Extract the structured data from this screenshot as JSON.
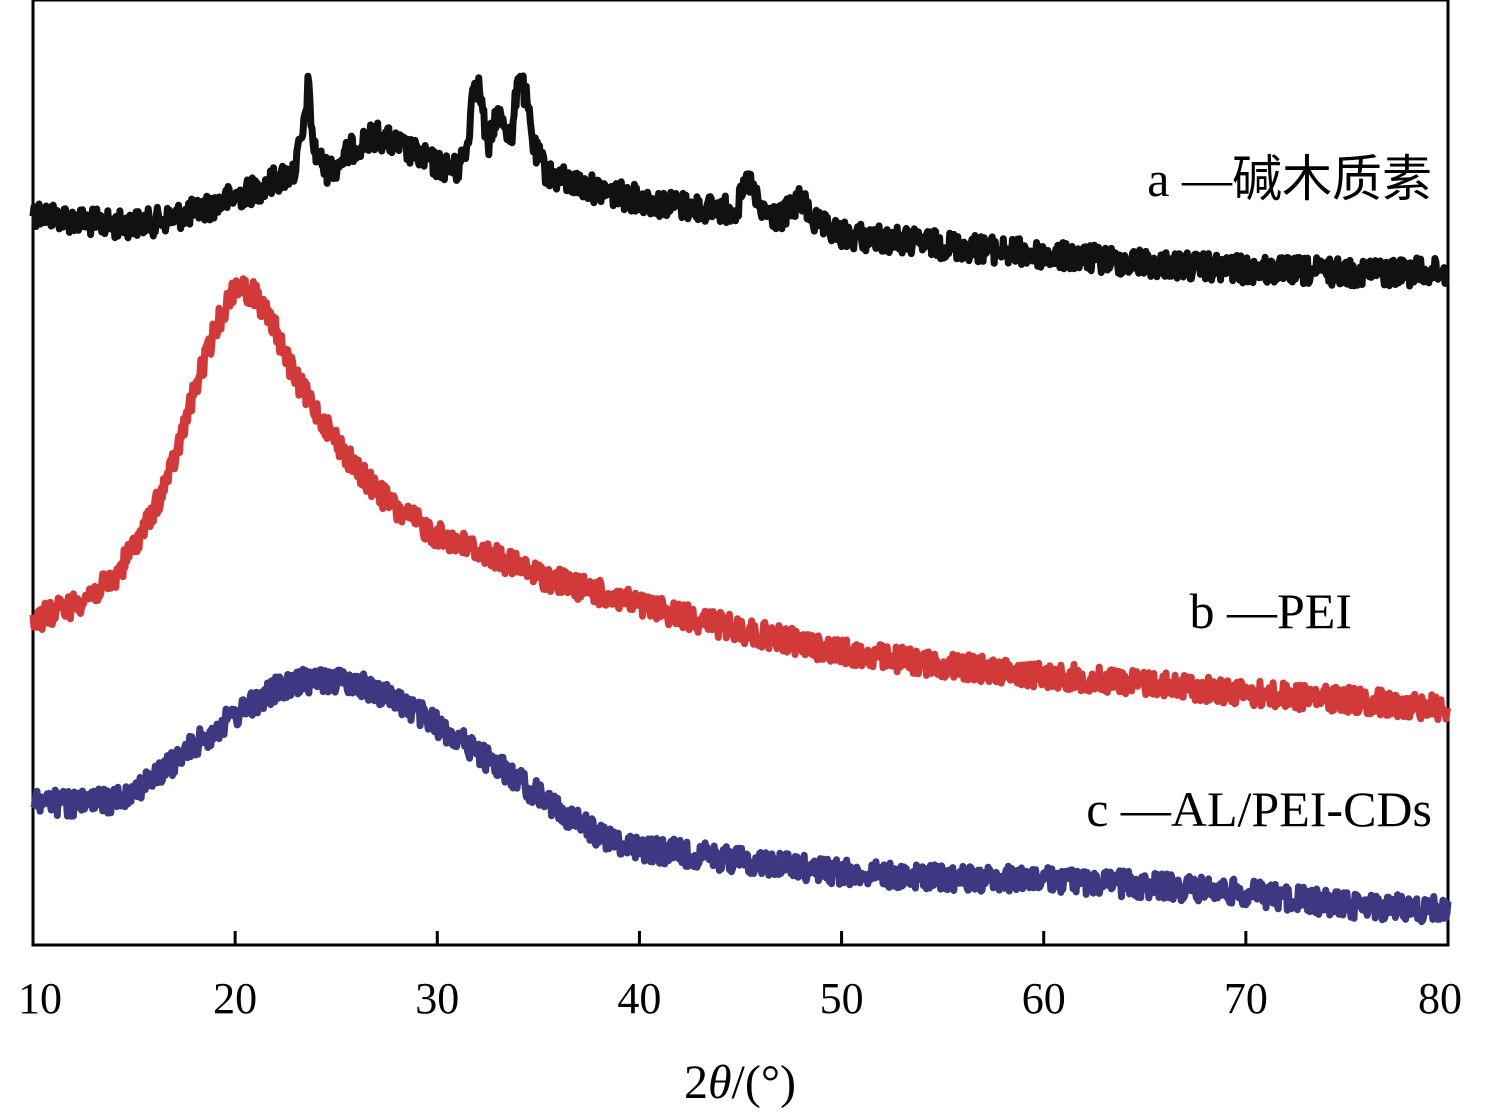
{
  "chart_data": {
    "type": "line",
    "title": "",
    "xlabel_prefix": "2",
    "xlabel_theta": "θ",
    "xlabel_suffix": "/(°)",
    "ylabel": "",
    "xlim": [
      10,
      80
    ],
    "xticks": [
      10,
      20,
      30,
      40,
      50,
      60,
      70,
      80
    ],
    "y_axis_ticks_shown": false,
    "grid": false,
    "legend": "inline labels at right of each curve",
    "series": [
      {
        "label": "a —碱木质素",
        "color": "#111111",
        "noise": 14,
        "points": [
          [
            10,
            212
          ],
          [
            12,
            220
          ],
          [
            14,
            225
          ],
          [
            16,
            222
          ],
          [
            18,
            212
          ],
          [
            20,
            197
          ],
          [
            21,
            190
          ],
          [
            22,
            180
          ],
          [
            22.9,
            172
          ],
          [
            23.4,
            130
          ],
          [
            23.6,
            85
          ],
          [
            23.9,
            150
          ],
          [
            24.5,
            170
          ],
          [
            25,
            165
          ],
          [
            26,
            145
          ],
          [
            27,
            135
          ],
          [
            28,
            145
          ],
          [
            29,
            155
          ],
          [
            30,
            165
          ],
          [
            31,
            170
          ],
          [
            31.5,
            145
          ],
          [
            31.8,
            80
          ],
          [
            32.1,
            90
          ],
          [
            32.5,
            150
          ],
          [
            32.9,
            115
          ],
          [
            33.3,
            120
          ],
          [
            33.7,
            140
          ],
          [
            34,
            70
          ],
          [
            34.4,
            100
          ],
          [
            34.8,
            150
          ],
          [
            35.5,
            175
          ],
          [
            37,
            185
          ],
          [
            39,
            195
          ],
          [
            41,
            203
          ],
          [
            43,
            208
          ],
          [
            44.8,
            210
          ],
          [
            45.4,
            180
          ],
          [
            46,
            212
          ],
          [
            47,
            218
          ],
          [
            48,
            200
          ],
          [
            48.8,
            225
          ],
          [
            50,
            235
          ],
          [
            55,
            245
          ],
          [
            60,
            255
          ],
          [
            65,
            263
          ],
          [
            70,
            270
          ],
          [
            75,
            272
          ],
          [
            80,
            272
          ]
        ]
      },
      {
        "label": "b —PEI",
        "color": "#d23a3a",
        "noise": 13,
        "points": [
          [
            10,
            620
          ],
          [
            12,
            605
          ],
          [
            14,
            580
          ],
          [
            16,
            510
          ],
          [
            17,
            460
          ],
          [
            18,
            390
          ],
          [
            19,
            330
          ],
          [
            20,
            285
          ],
          [
            21,
            295
          ],
          [
            22,
            330
          ],
          [
            23,
            380
          ],
          [
            24,
            410
          ],
          [
            25,
            440
          ],
          [
            26,
            470
          ],
          [
            28,
            510
          ],
          [
            30,
            535
          ],
          [
            32,
            550
          ],
          [
            35,
            575
          ],
          [
            40,
            605
          ],
          [
            45,
            630
          ],
          [
            50,
            652
          ],
          [
            55,
            665
          ],
          [
            60,
            675
          ],
          [
            65,
            683
          ],
          [
            70,
            693
          ],
          [
            75,
            700
          ],
          [
            80,
            708
          ]
        ]
      },
      {
        "label": "c —AL/PEI-CDs",
        "color": "#3e3882",
        "noise": 13,
        "points": [
          [
            10,
            800
          ],
          [
            12,
            805
          ],
          [
            14,
            800
          ],
          [
            16,
            778
          ],
          [
            18,
            745
          ],
          [
            20,
            715
          ],
          [
            22,
            690
          ],
          [
            24,
            678
          ],
          [
            26,
            683
          ],
          [
            28,
            700
          ],
          [
            30,
            725
          ],
          [
            32,
            752
          ],
          [
            34,
            780
          ],
          [
            36,
            810
          ],
          [
            38,
            835
          ],
          [
            40,
            848
          ],
          [
            45,
            860
          ],
          [
            50,
            872
          ],
          [
            55,
            878
          ],
          [
            60,
            880
          ],
          [
            65,
            885
          ],
          [
            70,
            893
          ],
          [
            75,
            905
          ],
          [
            80,
            910
          ]
        ]
      }
    ]
  }
}
